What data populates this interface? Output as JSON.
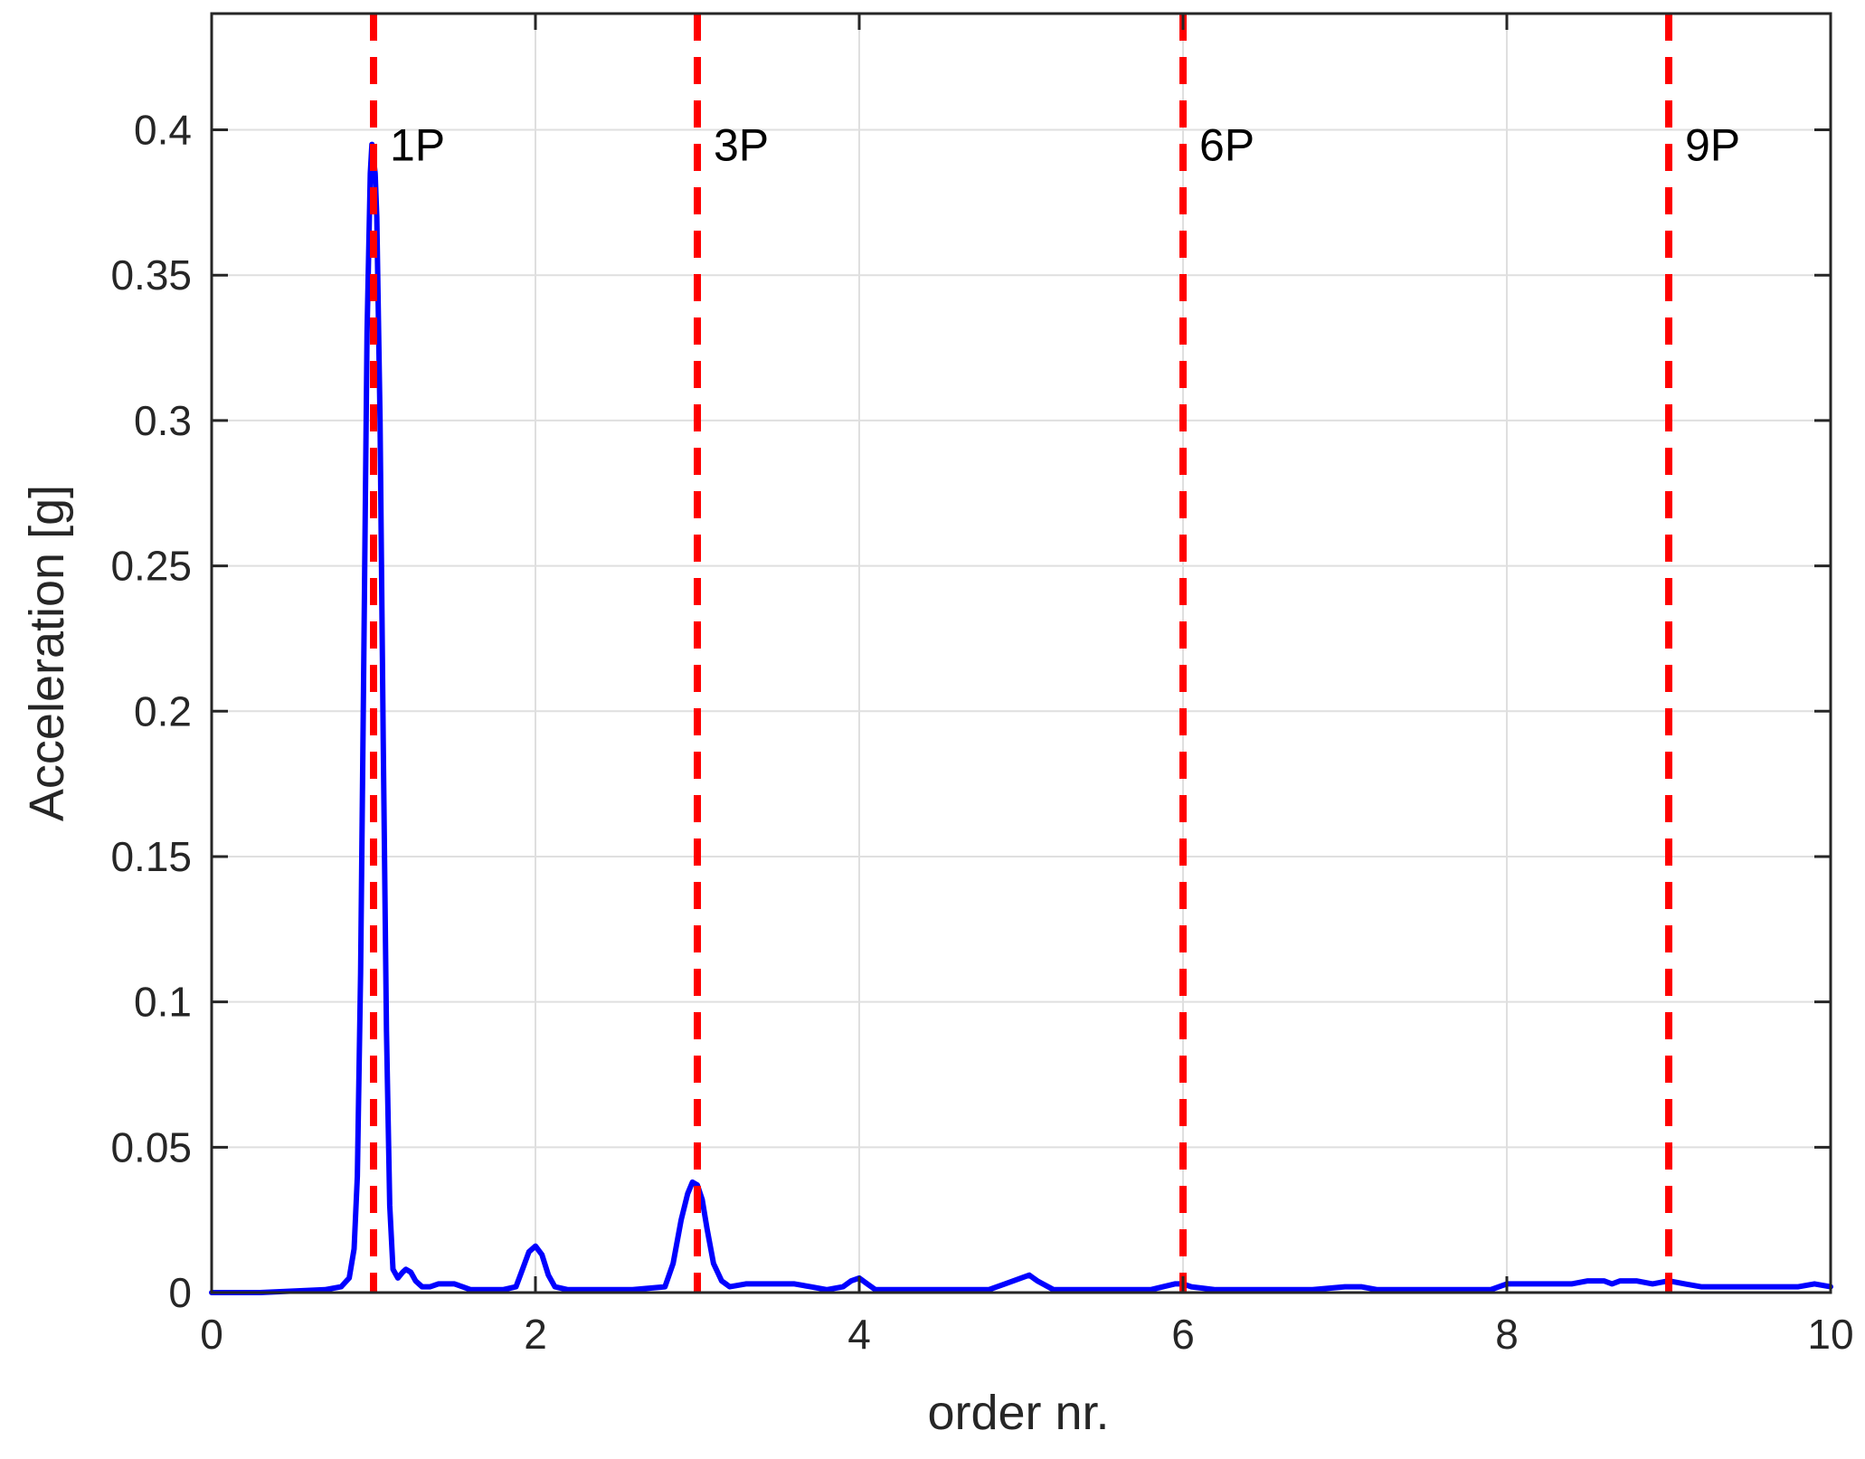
{
  "chart_data": {
    "type": "line",
    "title": "",
    "xlabel": "order nr.",
    "ylabel": "Acceleration [g]",
    "xlim": [
      0,
      10
    ],
    "ylim": [
      0,
      0.44
    ],
    "grid": true,
    "x_ticks": [
      0,
      2,
      4,
      6,
      8,
      10
    ],
    "x_tick_labels": [
      "0",
      "2",
      "4",
      "6",
      "8",
      "10"
    ],
    "y_ticks": [
      0,
      0.05,
      0.1,
      0.15,
      0.2,
      0.25,
      0.3,
      0.35,
      0.4
    ],
    "y_tick_labels": [
      "0",
      "0.05",
      "0.1",
      "0.15",
      "0.2",
      "0.25",
      "0.3",
      "0.35",
      "0.4"
    ],
    "series": [
      {
        "color": "#0000ff",
        "x": [
          0,
          0.3,
          0.5,
          0.7,
          0.8,
          0.85,
          0.88,
          0.9,
          0.92,
          0.94,
          0.96,
          0.98,
          0.99,
          1.0,
          1.01,
          1.02,
          1.04,
          1.06,
          1.08,
          1.1,
          1.12,
          1.15,
          1.18,
          1.2,
          1.23,
          1.26,
          1.3,
          1.35,
          1.4,
          1.45,
          1.5,
          1.55,
          1.6,
          1.7,
          1.8,
          1.88,
          1.92,
          1.96,
          2.0,
          2.04,
          2.08,
          2.12,
          2.2,
          2.4,
          2.6,
          2.8,
          2.85,
          2.9,
          2.94,
          2.97,
          3.0,
          3.03,
          3.06,
          3.1,
          3.15,
          3.2,
          3.3,
          3.4,
          3.5,
          3.6,
          3.7,
          3.8,
          3.9,
          3.95,
          4.0,
          4.05,
          4.1,
          4.3,
          4.6,
          4.8,
          4.9,
          5.0,
          5.05,
          5.1,
          5.2,
          5.4,
          5.6,
          5.8,
          5.95,
          6.0,
          6.05,
          6.2,
          6.5,
          6.8,
          7.0,
          7.1,
          7.2,
          7.5,
          7.8,
          7.9,
          8.0,
          8.1,
          8.2,
          8.3,
          8.4,
          8.5,
          8.6,
          8.65,
          8.7,
          8.8,
          8.9,
          9.0,
          9.1,
          9.2,
          9.4,
          9.6,
          9.8,
          9.9,
          10.0
        ],
        "y": [
          0.0,
          0.0,
          0.0005,
          0.001,
          0.002,
          0.005,
          0.015,
          0.04,
          0.11,
          0.22,
          0.33,
          0.385,
          0.395,
          0.39,
          0.385,
          0.37,
          0.3,
          0.19,
          0.09,
          0.03,
          0.008,
          0.005,
          0.007,
          0.008,
          0.007,
          0.004,
          0.002,
          0.002,
          0.003,
          0.003,
          0.003,
          0.002,
          0.001,
          0.001,
          0.001,
          0.002,
          0.008,
          0.014,
          0.016,
          0.013,
          0.006,
          0.002,
          0.001,
          0.001,
          0.001,
          0.002,
          0.01,
          0.025,
          0.034,
          0.038,
          0.037,
          0.032,
          0.022,
          0.01,
          0.004,
          0.002,
          0.003,
          0.003,
          0.003,
          0.003,
          0.002,
          0.001,
          0.002,
          0.004,
          0.005,
          0.003,
          0.001,
          0.001,
          0.001,
          0.001,
          0.003,
          0.005,
          0.006,
          0.004,
          0.001,
          0.001,
          0.001,
          0.001,
          0.003,
          0.003,
          0.002,
          0.001,
          0.001,
          0.001,
          0.002,
          0.002,
          0.001,
          0.001,
          0.001,
          0.001,
          0.003,
          0.003,
          0.003,
          0.003,
          0.003,
          0.004,
          0.004,
          0.003,
          0.004,
          0.004,
          0.003,
          0.004,
          0.003,
          0.002,
          0.002,
          0.002,
          0.002,
          0.003,
          0.002
        ]
      }
    ],
    "reference_lines": [
      {
        "x": 1,
        "label": "1P",
        "color": "#ff0000"
      },
      {
        "x": 3,
        "label": "3P",
        "color": "#ff0000"
      },
      {
        "x": 6,
        "label": "6P",
        "color": "#ff0000"
      },
      {
        "x": 9,
        "label": "9P",
        "color": "#ff0000"
      }
    ]
  }
}
